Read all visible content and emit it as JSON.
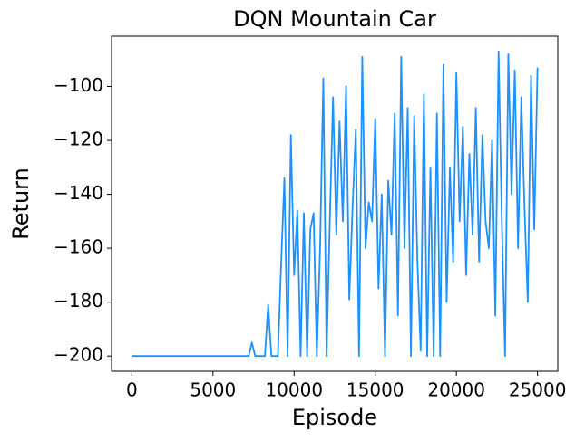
{
  "chart_data": {
    "type": "line",
    "title": "DQN Mountain Car",
    "x_label": "Episode",
    "y_label": "Return",
    "x": [
      0,
      200,
      400,
      600,
      800,
      1000,
      1200,
      1400,
      1600,
      1800,
      2000,
      2200,
      2400,
      2600,
      2800,
      3000,
      3200,
      3400,
      3600,
      3800,
      4000,
      4200,
      4400,
      4600,
      4800,
      5000,
      5200,
      5400,
      5600,
      5800,
      6000,
      6200,
      6400,
      6600,
      6800,
      7000,
      7200,
      7400,
      7600,
      7800,
      8000,
      8200,
      8400,
      8600,
      8800,
      9000,
      9200,
      9400,
      9600,
      9800,
      10000,
      10200,
      10400,
      10600,
      10800,
      11000,
      11200,
      11400,
      11600,
      11800,
      12000,
      12200,
      12400,
      12600,
      12800,
      13000,
      13200,
      13400,
      13600,
      13800,
      14000,
      14200,
      14400,
      14600,
      14800,
      15000,
      15200,
      15400,
      15600,
      15800,
      16000,
      16200,
      16400,
      16600,
      16800,
      17000,
      17200,
      17400,
      17600,
      17800,
      18000,
      18200,
      18400,
      18600,
      18800,
      19000,
      19200,
      19400,
      19600,
      19800,
      20000,
      20200,
      20400,
      20600,
      20800,
      21000,
      21200,
      21400,
      21600,
      21800,
      22000,
      22200,
      22400,
      22600,
      22800,
      23000,
      23200,
      23400,
      23600,
      23800,
      24000,
      24200,
      24400,
      24600,
      24800,
      25000
    ],
    "series": [
      {
        "name": "Return",
        "color": "#1e90ff",
        "values": [
          -200,
          -200,
          -200,
          -200,
          -200,
          -200,
          -200,
          -200,
          -200,
          -200,
          -200,
          -200,
          -200,
          -200,
          -200,
          -200,
          -200,
          -200,
          -200,
          -200,
          -200,
          -200,
          -200,
          -200,
          -200,
          -200,
          -200,
          -200,
          -200,
          -200,
          -200,
          -200,
          -200,
          -200,
          -200,
          -200,
          -200,
          -195,
          -200,
          -200,
          -200,
          -200,
          -181,
          -200,
          -200,
          -200,
          -166,
          -134,
          -200,
          -118,
          -170,
          -146,
          -200,
          -147,
          -200,
          -153,
          -147,
          -200,
          -160,
          -97,
          -200,
          -150,
          -104,
          -155,
          -113,
          -150,
          -100,
          -179,
          -145,
          -116,
          -200,
          -89,
          -160,
          -143,
          -150,
          -112,
          -175,
          -140,
          -200,
          -135,
          -155,
          -110,
          -185,
          -89,
          -160,
          -108,
          -200,
          -111,
          -165,
          -198,
          -103,
          -200,
          -130,
          -200,
          -110,
          -200,
          -92,
          -180,
          -130,
          -165,
          -95,
          -150,
          -115,
          -170,
          -125,
          -155,
          -108,
          -165,
          -118,
          -150,
          -160,
          -120,
          -185,
          -87,
          -150,
          -200,
          -88,
          -140,
          -94,
          -160,
          -104,
          -145,
          -180,
          -96,
          -153,
          -93
        ]
      }
    ],
    "xlim": [
      -1250,
      26250
    ],
    "ylim": [
      -205.65,
      -81.35
    ],
    "xticks": [
      0,
      5000,
      10000,
      15000,
      20000,
      25000
    ],
    "yticks": [
      {
        "value": -200,
        "label": "−200"
      },
      {
        "value": -180,
        "label": "−180"
      },
      {
        "value": -160,
        "label": "−160"
      },
      {
        "value": -140,
        "label": "−140"
      },
      {
        "value": -120,
        "label": "−120"
      },
      {
        "value": -100,
        "label": "−100"
      }
    ]
  }
}
